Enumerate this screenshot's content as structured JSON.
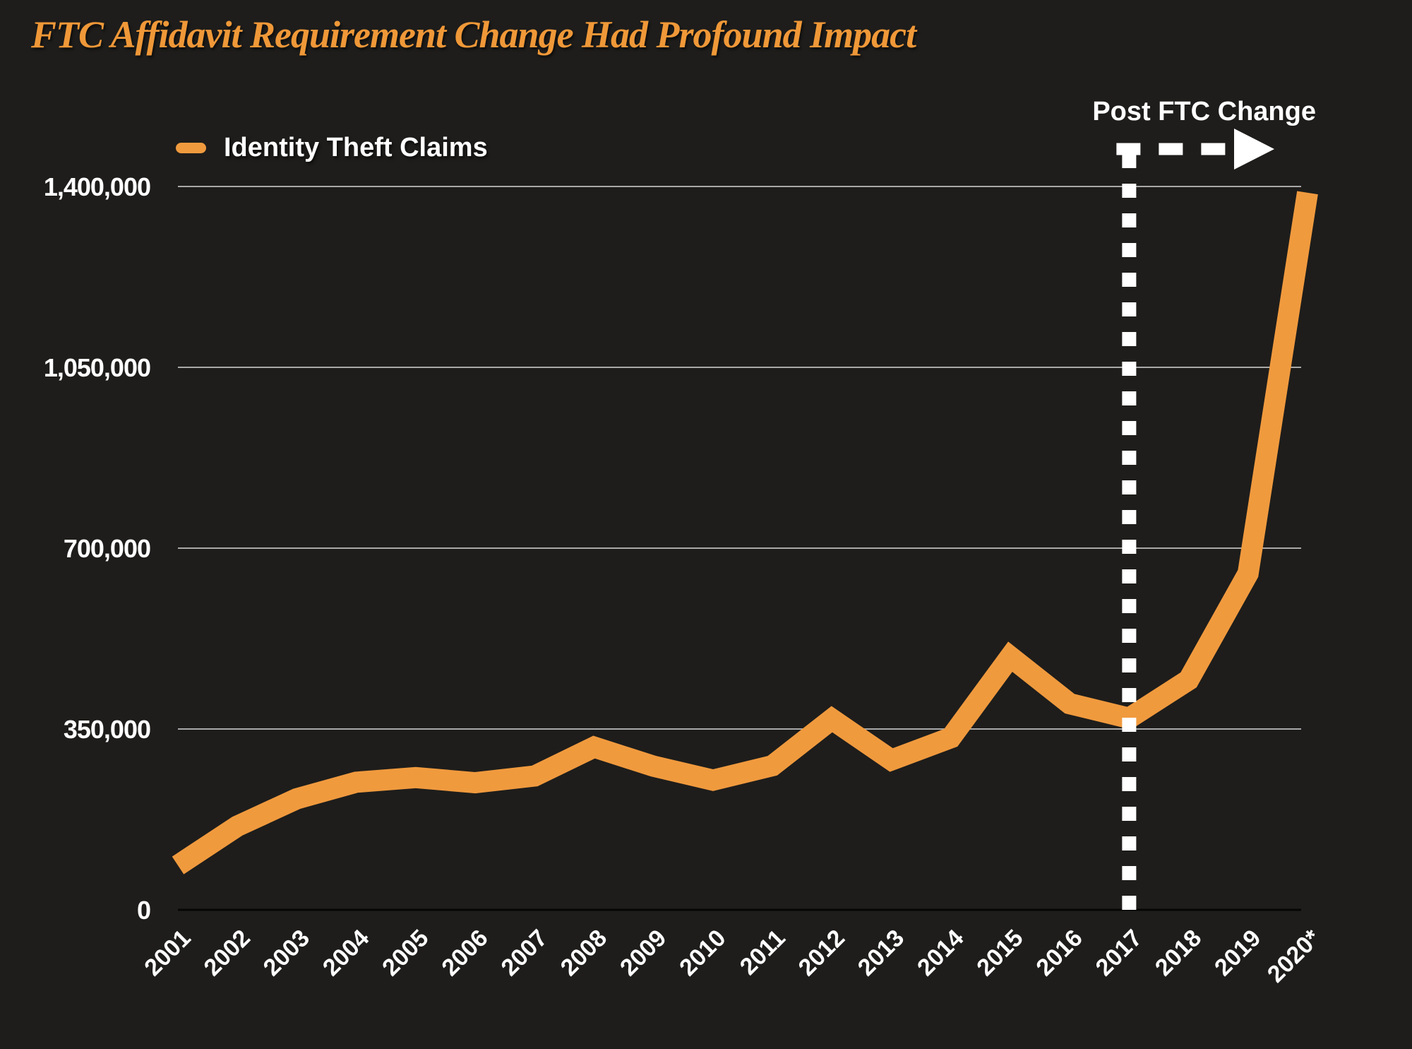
{
  "title": "FTC Affidavit Requirement Change Had Profound Impact",
  "legend": {
    "label": "Identity Theft Claims"
  },
  "annotation": {
    "label": "Post FTC Change",
    "at_category": "2017"
  },
  "colors": {
    "background": "#1E1D1B",
    "title_orange": "#EF9838",
    "series_orange": "#F09A3E",
    "label_white": "#FFFFFF",
    "gridline_gray": "#A9A9A9",
    "baseline_black": "#060606",
    "annotation_white": "#FFFFFF"
  },
  "chart_data": {
    "type": "line",
    "title": "FTC Affidavit Requirement Change Had Profound Impact",
    "xlabel": "",
    "ylabel": "",
    "categories": [
      "2001",
      "2002",
      "2003",
      "2004",
      "2005",
      "2006",
      "2007",
      "2008",
      "2009",
      "2010",
      "2011",
      "2012",
      "2013",
      "2014",
      "2015",
      "2016",
      "2017",
      "2018",
      "2019",
      "2020*"
    ],
    "series": [
      {
        "name": "Identity Theft Claims",
        "color": "#F09A3E",
        "values": [
          86000,
          162000,
          215000,
          247000,
          256000,
          246000,
          259000,
          315000,
          278000,
          251000,
          279000,
          369000,
          290000,
          333000,
          490000,
          399000,
          371000,
          445000,
          651000,
          1388000
        ]
      }
    ],
    "y_ticks": [
      "0",
      "350,000",
      "700,000",
      "1,050,000",
      "1,400,000"
    ],
    "y_tick_values": [
      0,
      350000,
      700000,
      1050000,
      1400000
    ],
    "ylim": [
      0,
      1400000
    ],
    "grid": "horizontal-only",
    "legend_position": "top-left",
    "annotations": {
      "vertical_dashed_line_at": "2017",
      "arrow_label": "Post FTC Change",
      "arrow_direction": "right"
    }
  }
}
